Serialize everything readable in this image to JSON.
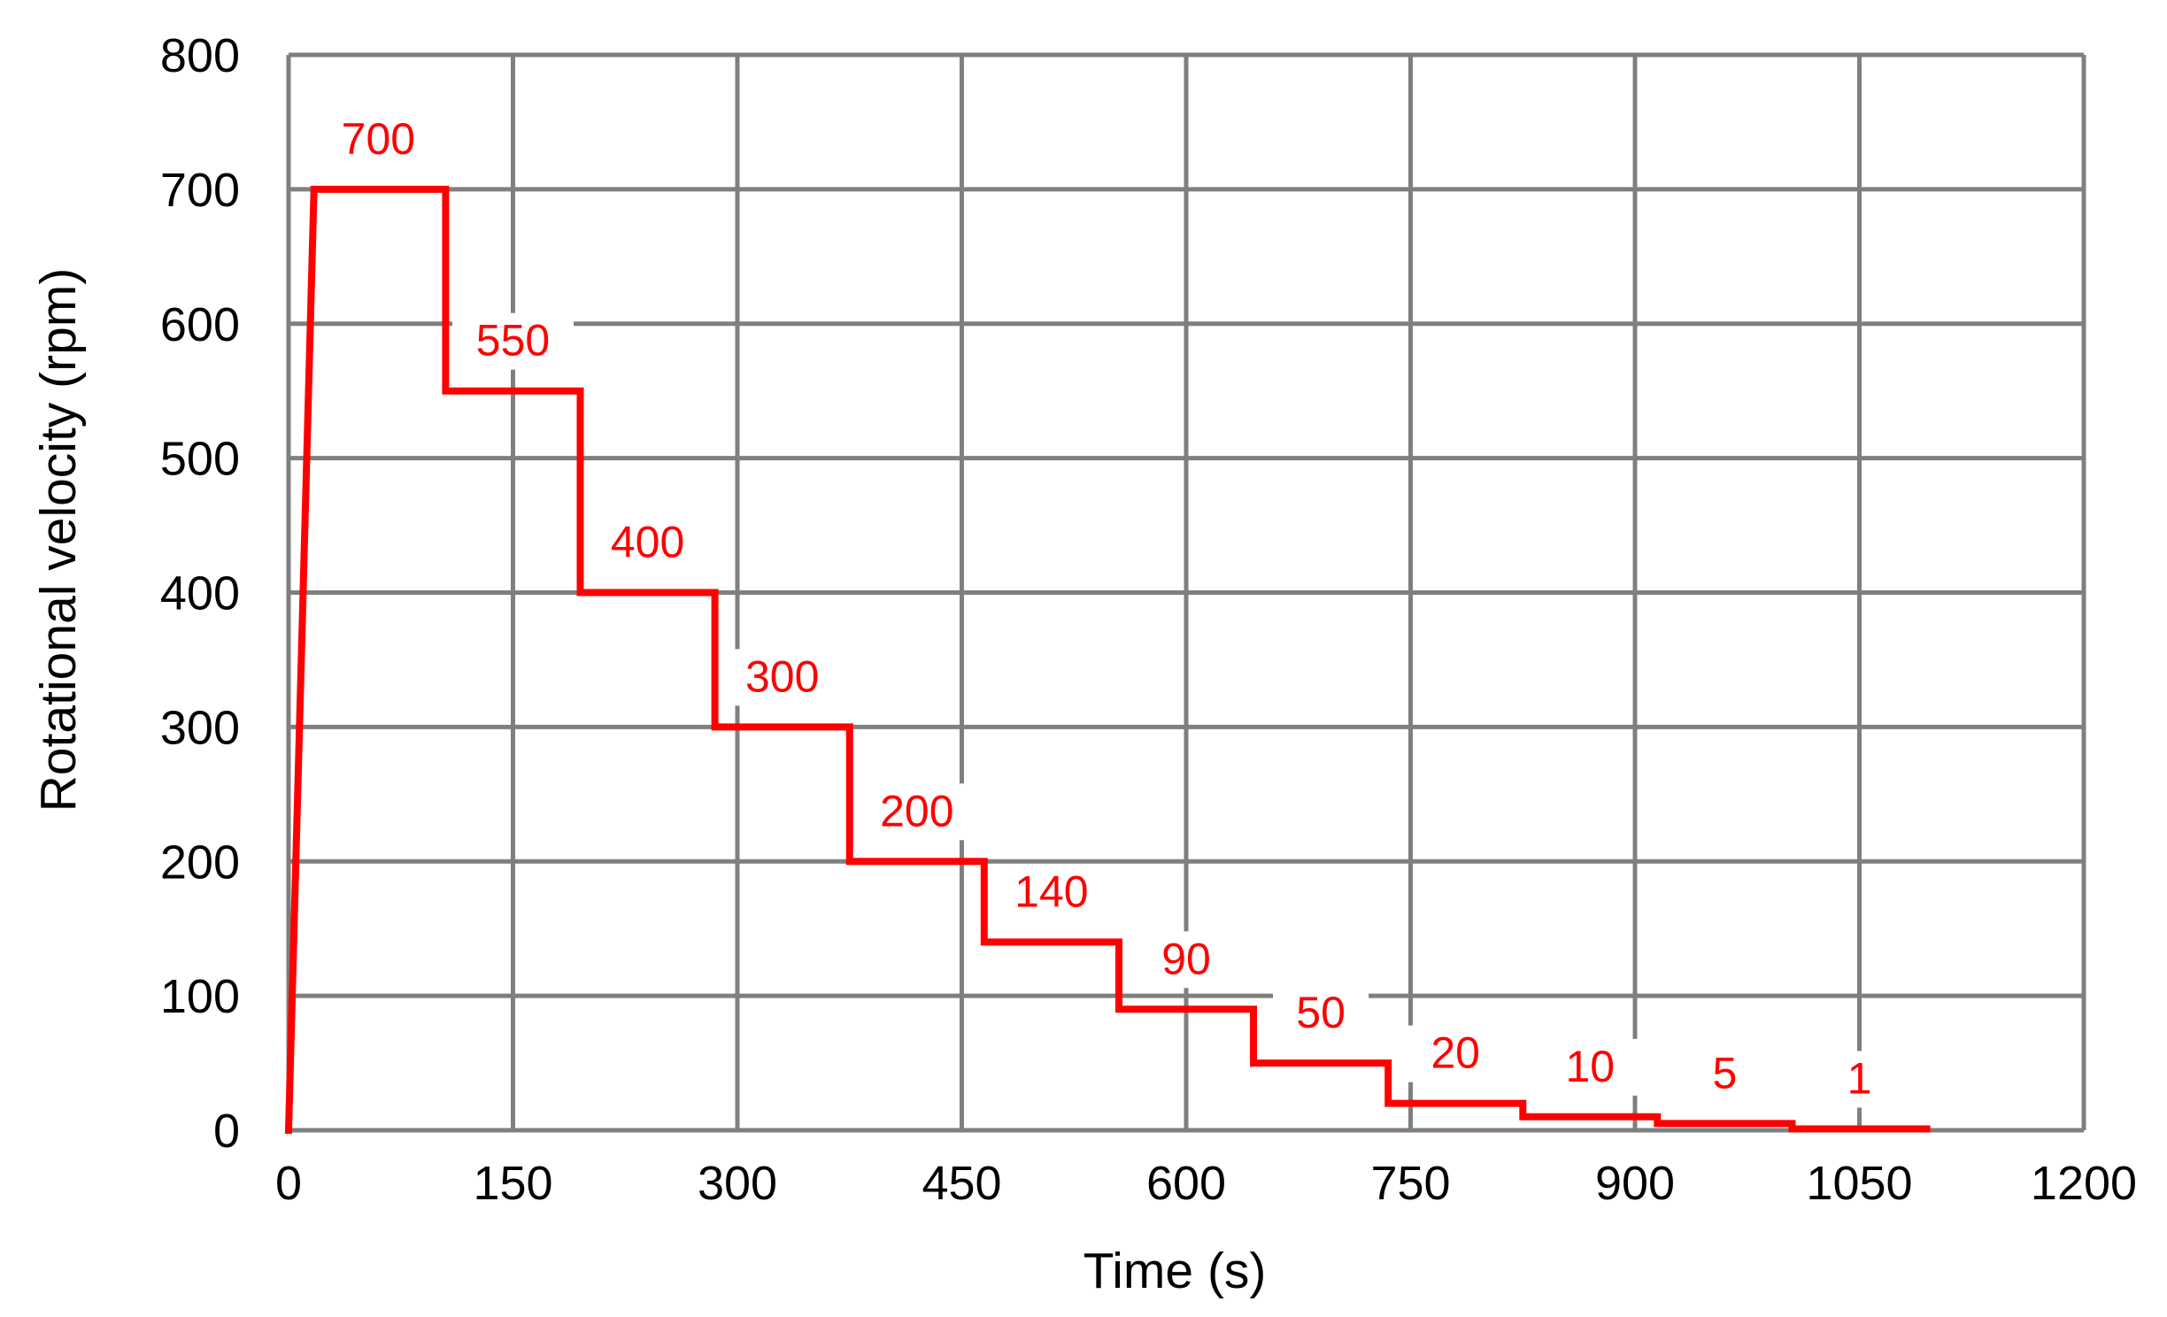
{
  "chart_data": {
    "type": "line",
    "title": "",
    "xlabel": "Time (s)",
    "ylabel": "Rotational velocity (rpm)",
    "xlim": [
      0,
      1200
    ],
    "ylim": [
      0,
      800
    ],
    "x_ticks": [
      "0",
      "150",
      "300",
      "450",
      "600",
      "750",
      "900",
      "1050",
      "1200"
    ],
    "y_ticks": [
      "0",
      "100",
      "200",
      "300",
      "400",
      "500",
      "600",
      "700",
      "800"
    ],
    "grid": true,
    "legend": "none",
    "series": [
      {
        "color": "#ff0000",
        "x": [
          0,
          17,
          105,
          105,
          195,
          195,
          285,
          285,
          375,
          375,
          465,
          465,
          555,
          555,
          645,
          645,
          735,
          735,
          825,
          825,
          915,
          915,
          1005,
          1005,
          1095
        ],
        "y": [
          0,
          700,
          700,
          550,
          550,
          400,
          400,
          300,
          300,
          200,
          200,
          140,
          140,
          90,
          90,
          50,
          50,
          20,
          20,
          10,
          10,
          5,
          5,
          1,
          1
        ]
      }
    ],
    "annotations": [
      {
        "text": "700",
        "x": 60,
        "y": 700
      },
      {
        "text": "550",
        "x": 150,
        "y": 550
      },
      {
        "text": "400",
        "x": 240,
        "y": 400
      },
      {
        "text": "300",
        "x": 330,
        "y": 300
      },
      {
        "text": "200",
        "x": 420,
        "y": 200
      },
      {
        "text": "140",
        "x": 510,
        "y": 140
      },
      {
        "text": "90",
        "x": 600,
        "y": 90
      },
      {
        "text": "50",
        "x": 690,
        "y": 50
      },
      {
        "text": "20",
        "x": 780,
        "y": 20
      },
      {
        "text": "10",
        "x": 870,
        "y": 10
      },
      {
        "text": "5",
        "x": 960,
        "y": 5
      },
      {
        "text": "1",
        "x": 1050,
        "y": 1
      }
    ]
  }
}
